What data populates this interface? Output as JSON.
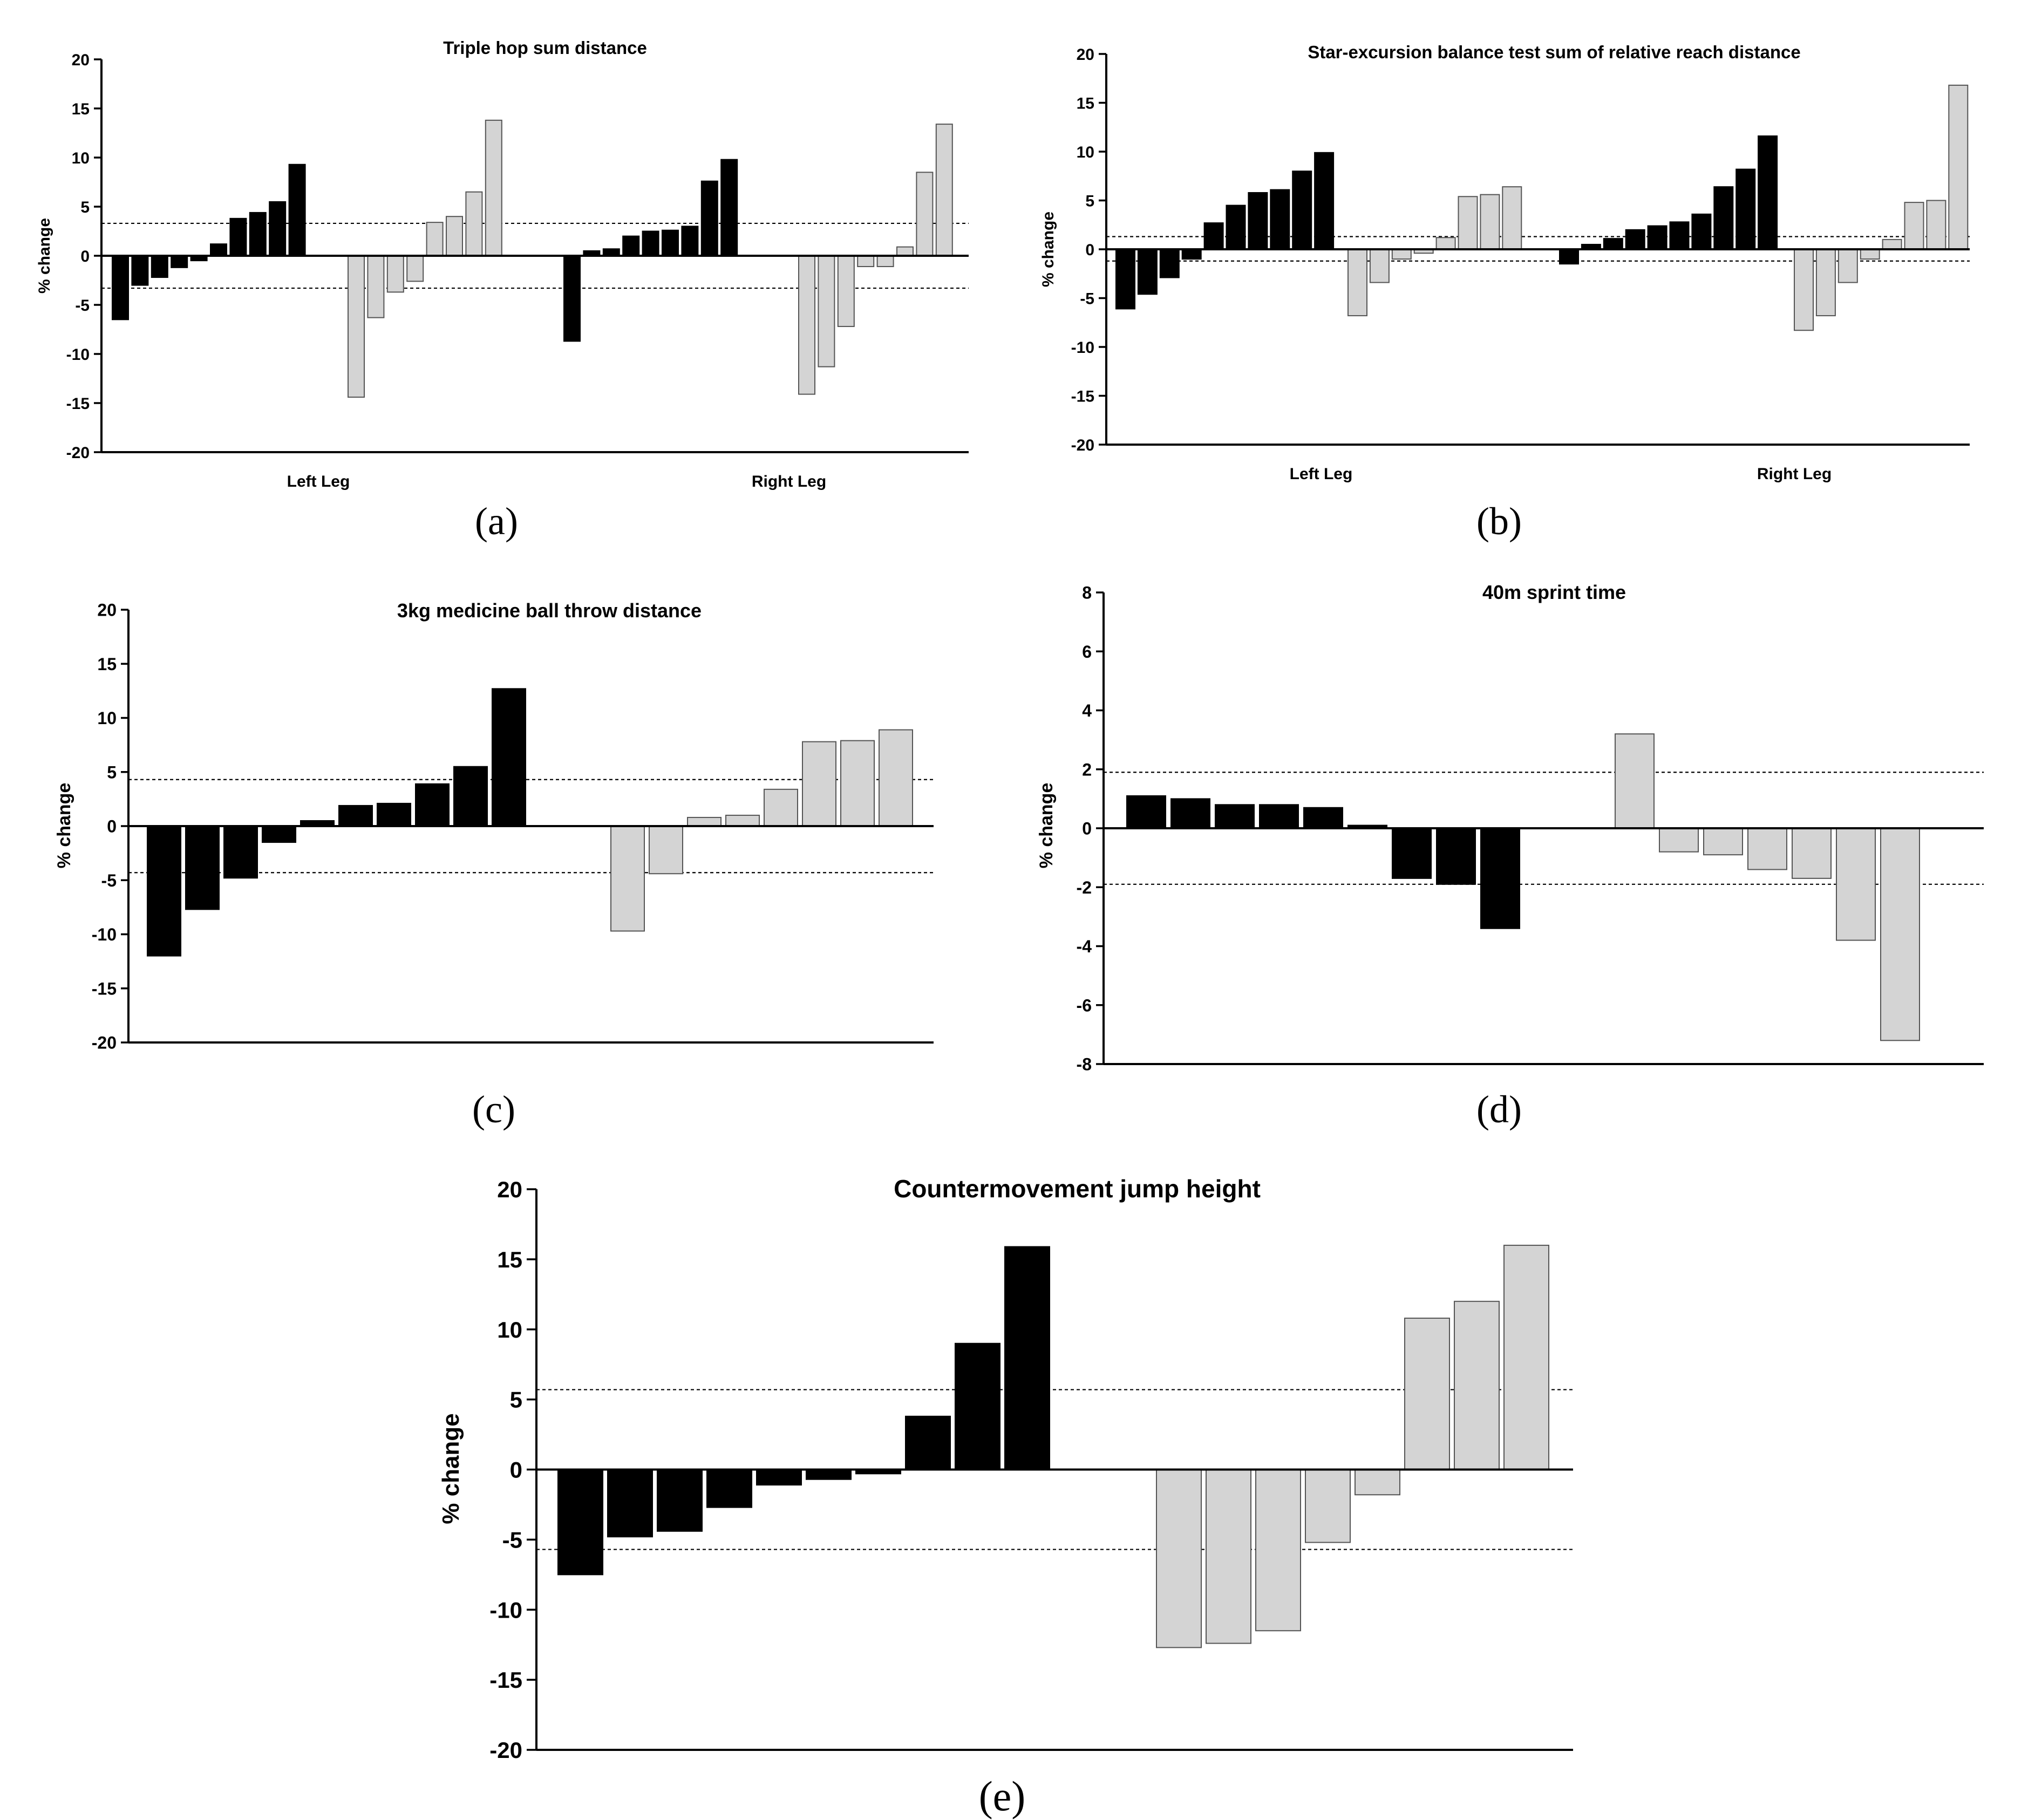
{
  "chart_data": [
    {
      "type": "bar",
      "panel_label": "(a)",
      "title": "Triple hop sum distance",
      "ylabel": "% change",
      "ylim": [
        -20,
        20
      ],
      "yticks": [
        20,
        15,
        10,
        5,
        0,
        -5,
        -10,
        -15,
        -20
      ],
      "thresholds": [
        3.3,
        -3.3
      ],
      "group_labels": [
        "Left Leg",
        "Right Leg"
      ],
      "series": [
        {
          "name": "Left Leg - black",
          "color": "#000000",
          "values": [
            -6.5,
            -3.0,
            -2.2,
            -1.2,
            -0.5,
            1.2,
            3.8,
            4.4,
            5.5,
            9.3
          ]
        },
        {
          "name": "Left Leg - grey",
          "color": "#d4d4d4",
          "values": [
            -14.4,
            -6.3,
            -3.7,
            -2.6,
            3.4,
            4.0,
            6.5,
            13.8
          ]
        },
        {
          "name": "Right Leg - black",
          "color": "#000000",
          "values": [
            -8.7,
            0.5,
            0.7,
            2.0,
            2.5,
            2.6,
            3.0,
            7.6,
            9.8
          ]
        },
        {
          "name": "Right Leg - grey",
          "color": "#d4d4d4",
          "values": [
            -14.1,
            -11.3,
            -7.2,
            -1.1,
            -1.1,
            0.9,
            8.5,
            13.4
          ]
        }
      ]
    },
    {
      "type": "bar",
      "panel_label": "(b)",
      "title": "Star-excursion balance test sum of relative reach distance",
      "ylabel": "% change",
      "ylim": [
        -20,
        20
      ],
      "yticks": [
        20,
        15,
        10,
        5,
        0,
        -5,
        -10,
        -15,
        -20
      ],
      "thresholds": [
        1.3,
        -1.2
      ],
      "group_labels": [
        "Left Leg",
        "Right Leg"
      ],
      "series": [
        {
          "name": "Left Leg - black",
          "color": "#000000",
          "values": [
            -6.1,
            -4.6,
            -2.9,
            -1.0,
            2.7,
            4.5,
            5.8,
            6.1,
            8.0,
            9.9
          ]
        },
        {
          "name": "Left Leg - grey",
          "color": "#d4d4d4",
          "values": [
            -6.8,
            -3.4,
            -1.0,
            -0.4,
            1.2,
            5.4,
            5.6,
            6.4
          ]
        },
        {
          "name": "Right Leg - black",
          "color": "#000000",
          "values": [
            -1.5,
            0.5,
            1.1,
            2.0,
            2.4,
            2.8,
            3.6,
            6.4,
            8.2,
            11.6
          ]
        },
        {
          "name": "Right Leg - grey",
          "color": "#d4d4d4",
          "values": [
            -8.3,
            -6.8,
            -3.4,
            -1.0,
            1.0,
            4.8,
            5.0,
            16.8
          ]
        }
      ]
    },
    {
      "type": "bar",
      "panel_label": "(c)",
      "title": "3kg medicine ball throw distance",
      "ylabel": "% change",
      "ylim": [
        -20,
        20
      ],
      "yticks": [
        20,
        15,
        10,
        5,
        0,
        -5,
        -10,
        -15,
        -20
      ],
      "thresholds": [
        4.3,
        -4.3
      ],
      "series": [
        {
          "name": "black",
          "color": "#000000",
          "values": [
            -12.0,
            -7.7,
            -4.8,
            -1.5,
            0.5,
            1.9,
            2.1,
            3.9,
            5.5,
            12.7
          ]
        },
        {
          "name": "grey",
          "color": "#d4d4d4",
          "values": [
            -9.7,
            -4.4,
            0.8,
            1.0,
            3.4,
            7.8,
            7.9,
            8.9
          ]
        }
      ]
    },
    {
      "type": "bar",
      "panel_label": "(d)",
      "title": "40m sprint time",
      "ylabel": "% change",
      "ylim": [
        -8,
        8
      ],
      "yticks": [
        8,
        6,
        4,
        2,
        0,
        -2,
        -4,
        -6,
        -8
      ],
      "thresholds": [
        1.9,
        -1.9
      ],
      "series": [
        {
          "name": "black",
          "color": "#000000",
          "values": [
            1.1,
            1.0,
            0.8,
            0.8,
            0.7,
            0.1,
            -1.7,
            -1.9,
            -3.4
          ]
        },
        {
          "name": "grey",
          "color": "#d4d4d4",
          "values": [
            3.2,
            -0.8,
            -0.9,
            -1.4,
            -1.7,
            -3.8,
            -7.2
          ]
        }
      ]
    },
    {
      "type": "bar",
      "panel_label": "(e)",
      "title": "Countermovement jump height",
      "ylabel": "% change",
      "ylim": [
        -20,
        20
      ],
      "yticks": [
        20,
        15,
        10,
        5,
        0,
        -5,
        -10,
        -15,
        -20
      ],
      "thresholds": [
        5.7,
        -5.7
      ],
      "series": [
        {
          "name": "black",
          "color": "#000000",
          "values": [
            -7.5,
            -4.8,
            -4.4,
            -2.7,
            -1.1,
            -0.7,
            -0.3,
            3.8,
            9.0,
            15.9
          ]
        },
        {
          "name": "grey",
          "color": "#d4d4d4",
          "values": [
            -12.7,
            -12.4,
            -11.5,
            -5.2,
            -1.8,
            10.8,
            12.0,
            16.0
          ]
        }
      ]
    }
  ]
}
